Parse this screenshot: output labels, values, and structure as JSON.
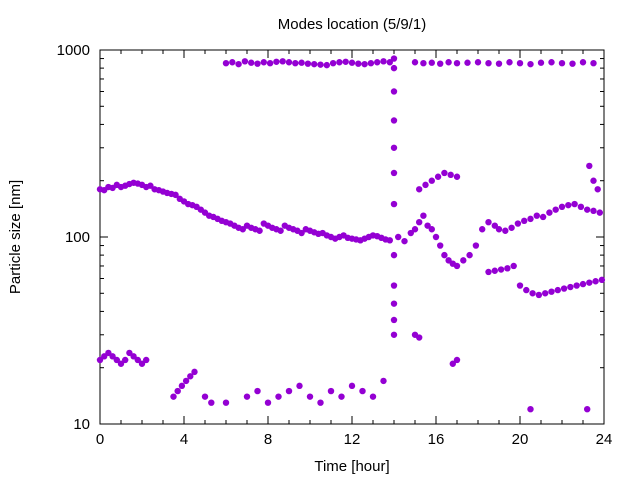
{
  "chart_data": {
    "type": "scatter",
    "title": "Modes location (5/9/1)",
    "xlabel": "Time [hour]",
    "ylabel": "Particle size [nm]",
    "xlim": [
      0,
      24
    ],
    "ylim": [
      10,
      1000
    ],
    "yscale": "log",
    "x_ticks": [
      0,
      4,
      8,
      12,
      16,
      20,
      24
    ],
    "x_tick_labels": [
      "0",
      "4",
      "8",
      "12",
      "16",
      "20",
      "24"
    ],
    "y_ticks": [
      10,
      100,
      1000
    ],
    "y_tick_labels": [
      "10",
      "100",
      "1000"
    ],
    "grid": false,
    "legend": "none",
    "marker_color": "#9400d3",
    "series": [
      {
        "x": [
          0.0,
          0.2,
          0.4,
          0.6,
          0.8,
          1.0,
          1.2,
          1.4,
          1.6,
          1.8,
          2.0,
          2.2,
          2.4,
          2.6,
          2.8,
          3.0,
          3.2,
          3.4,
          3.6,
          3.8,
          4.0,
          4.2,
          4.4,
          4.6,
          4.8,
          5.0,
          5.2,
          5.4,
          5.6,
          5.8,
          6.0,
          6.2,
          6.4,
          6.6,
          6.8,
          7.0,
          7.2,
          7.4,
          7.6,
          7.8,
          8.0,
          8.2,
          8.4,
          8.6,
          8.8,
          9.0,
          9.2,
          9.4,
          9.6,
          9.8,
          10.0,
          10.2,
          10.4,
          10.6,
          10.8,
          11.0,
          11.2,
          11.4,
          11.6,
          11.8,
          12.0,
          12.2,
          12.4,
          12.6,
          12.8,
          13.0,
          13.2,
          13.4,
          13.6,
          13.8
        ],
        "y": [
          180,
          178,
          185,
          183,
          190,
          185,
          188,
          192,
          195,
          193,
          190,
          185,
          188,
          180,
          178,
          175,
          172,
          170,
          168,
          160,
          155,
          150,
          148,
          145,
          140,
          135,
          130,
          128,
          125,
          122,
          120,
          118,
          115,
          112,
          110,
          115,
          112,
          110,
          108,
          118,
          115,
          112,
          110,
          108,
          115,
          112,
          110,
          108,
          105,
          110,
          108,
          106,
          104,
          105,
          102,
          100,
          98,
          100,
          102,
          99,
          98,
          97,
          96,
          98,
          100,
          102,
          101,
          99,
          97,
          96
        ]
      },
      {
        "x": [
          6.0,
          6.3,
          6.6,
          6.9,
          7.2,
          7.5,
          7.8,
          8.1,
          8.4,
          8.7,
          9.0,
          9.3,
          9.6,
          9.9,
          10.2,
          10.5,
          10.8,
          11.1,
          11.4,
          11.7,
          12.0,
          12.3,
          12.6,
          12.9,
          13.2,
          13.5,
          13.8
        ],
        "y": [
          850,
          860,
          840,
          870,
          855,
          845,
          860,
          850,
          865,
          870,
          860,
          850,
          855,
          845,
          840,
          835,
          830,
          850,
          860,
          865,
          855,
          845,
          840,
          850,
          860,
          870,
          860
        ]
      },
      {
        "x": [
          15.0,
          15.4,
          15.8,
          16.2,
          16.6,
          17.0,
          17.5,
          18.0,
          18.5,
          19.0,
          19.5,
          20.0,
          20.5,
          21.0,
          21.5,
          22.0,
          22.5,
          23.0,
          23.5
        ],
        "y": [
          860,
          850,
          855,
          845,
          860,
          850,
          855,
          860,
          850,
          845,
          860,
          850,
          840,
          855,
          860,
          850,
          845,
          860,
          850
        ]
      },
      {
        "x": [
          0.0,
          0.2,
          0.4,
          0.6,
          0.8,
          1.0,
          1.2,
          1.4,
          1.6,
          1.8,
          2.0,
          2.2,
          3.5,
          3.7,
          3.9,
          4.1,
          4.3,
          4.5,
          5.0,
          5.3,
          6.0,
          7.0,
          7.5,
          8.0,
          8.5,
          9.0,
          9.5,
          10.0,
          10.5,
          11.0,
          11.5,
          12.0,
          12.5,
          13.0,
          13.5
        ],
        "y": [
          22,
          23,
          24,
          23,
          22,
          21,
          22,
          24,
          23,
          22,
          21,
          22,
          14,
          15,
          16,
          17,
          18,
          19,
          14,
          13,
          13,
          14,
          15,
          13,
          14,
          15,
          16,
          14,
          13,
          15,
          14,
          16,
          15,
          14,
          17
        ]
      },
      {
        "x": [
          14.0,
          14.0,
          14.0,
          14.0,
          14.0,
          14.0,
          14.0,
          14.0,
          14.0,
          14.0,
          14.0,
          14.0
        ],
        "y": [
          30,
          36,
          44,
          55,
          80,
          150,
          220,
          300,
          420,
          600,
          800,
          900
        ]
      },
      {
        "x": [
          14.2,
          14.5,
          14.8,
          15.0,
          15.2,
          15.4,
          15.6,
          15.8,
          16.0,
          16.2,
          16.4,
          16.6,
          16.8,
          17.0,
          17.3,
          17.6,
          17.9,
          18.2,
          18.5,
          18.8,
          19.0,
          19.3,
          19.6,
          19.9,
          20.2,
          20.5,
          20.8,
          21.1,
          21.4,
          21.7,
          22.0,
          22.3,
          22.6,
          22.9,
          23.2,
          23.5,
          23.8
        ],
        "y": [
          100,
          95,
          105,
          110,
          120,
          130,
          115,
          110,
          100,
          90,
          80,
          75,
          72,
          70,
          75,
          80,
          90,
          110,
          120,
          115,
          110,
          108,
          112,
          118,
          122,
          125,
          130,
          128,
          135,
          140,
          145,
          148,
          150,
          145,
          140,
          138,
          135
        ]
      },
      {
        "x": [
          15.2,
          15.5,
          15.8,
          16.1,
          16.4,
          16.7,
          17.0
        ],
        "y": [
          180,
          190,
          200,
          210,
          220,
          215,
          210
        ]
      },
      {
        "x": [
          18.5,
          18.8,
          19.1,
          19.4,
          19.7,
          20.0,
          20.3,
          20.6,
          20.9,
          21.2,
          21.5,
          21.8,
          22.1,
          22.4,
          22.7,
          23.0,
          23.3,
          23.6,
          23.9
        ],
        "y": [
          65,
          66,
          67,
          68,
          70,
          55,
          52,
          50,
          49,
          50,
          51,
          52,
          53,
          54,
          55,
          56,
          57,
          58,
          59
        ]
      },
      {
        "x": [
          15.0,
          15.2,
          16.8,
          17.0,
          20.5,
          23.2
        ],
        "y": [
          30,
          29,
          21,
          22,
          12,
          12
        ]
      },
      {
        "x": [
          23.3,
          23.5,
          23.7
        ],
        "y": [
          240,
          200,
          180
        ]
      }
    ]
  }
}
